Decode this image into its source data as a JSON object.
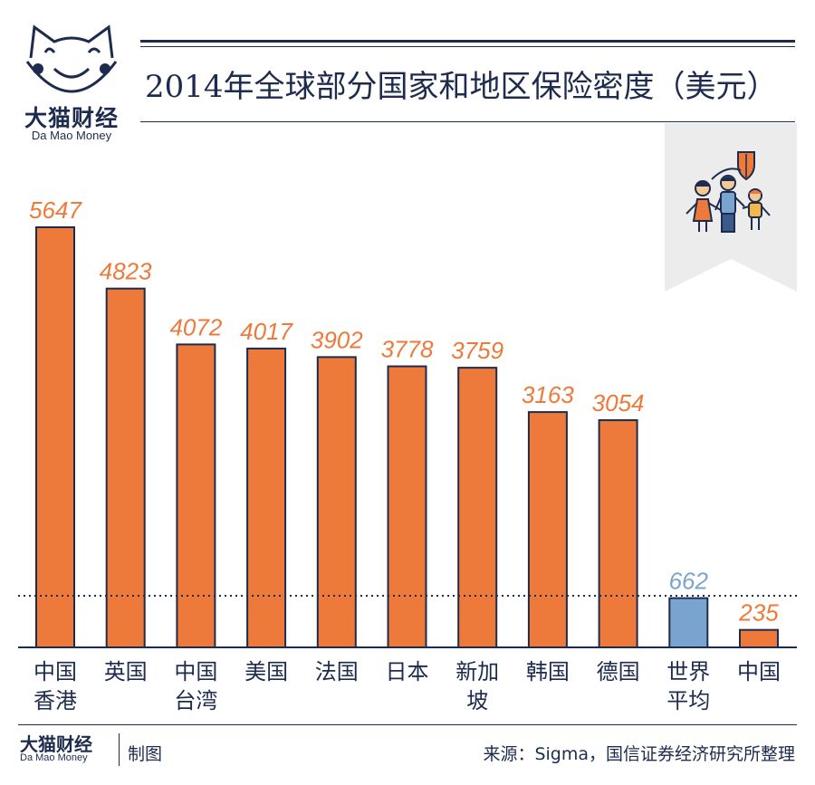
{
  "logo": {
    "cn": "大猫财经",
    "en": "Da Mao Money"
  },
  "title": "2014年全球部分国家和地区保险密度（美元）",
  "colors": {
    "bar": "#ed7a3b",
    "highlight_bar": "#7aa3cf",
    "text_dark": "#1d2c4e",
    "badge_bg": "#ececec"
  },
  "chart_data": {
    "type": "bar",
    "categories": [
      [
        "中国",
        "香港"
      ],
      [
        "英国"
      ],
      [
        "中国",
        "台湾"
      ],
      [
        "美国"
      ],
      [
        "法国"
      ],
      [
        "日本"
      ],
      [
        "新加",
        "坡"
      ],
      [
        "韩国"
      ],
      [
        "德国"
      ],
      [
        "世界",
        "平均"
      ],
      [
        "中国"
      ]
    ],
    "values": [
      5647,
      4823,
      4072,
      4017,
      3902,
      3778,
      3759,
      3163,
      3054,
      662,
      235
    ],
    "value_labels": [
      "5647",
      "4823",
      "4072",
      "4017",
      "3902",
      "3778",
      "3759",
      "3163",
      "3054",
      "662",
      "235"
    ],
    "highlight_index": 9,
    "reference_line": 662,
    "ylim": [
      0,
      5647
    ],
    "title": "2014年全球部分国家和地区保险密度（美元）"
  },
  "footer": {
    "logo_cn": "大猫财经",
    "logo_en": "Da Mao Money",
    "made_by": "制图",
    "source": "来源：Sigma，国信证券经济研究所整理"
  }
}
